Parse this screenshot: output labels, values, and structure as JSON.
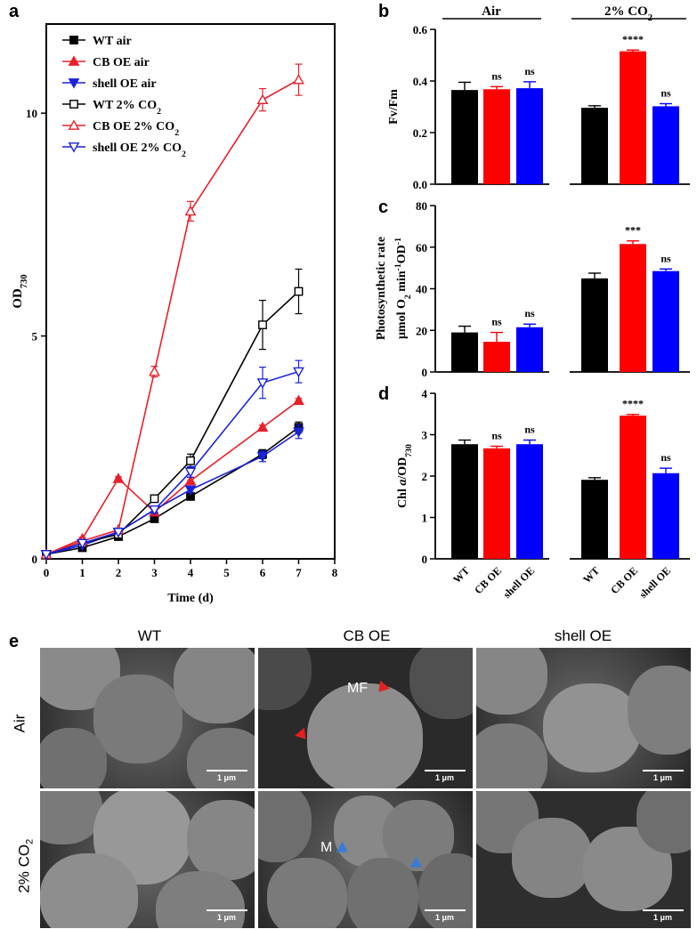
{
  "panels": {
    "a": "a",
    "b": "b",
    "c": "c",
    "d": "d",
    "e": "e"
  },
  "chart_data": [
    {
      "type": "line",
      "panel": "a",
      "xlabel": "Time (d)",
      "ylabel": "OD730",
      "ylabel_main": "OD",
      "ylabel_sub": "730",
      "xlim": [
        0,
        8
      ],
      "ylim": [
        0,
        12
      ],
      "xticks": [
        "0",
        "1",
        "2",
        "3",
        "4",
        "5",
        "6",
        "7",
        "8"
      ],
      "yticks": [
        {
          "value": 0,
          "label": "0"
        },
        {
          "value": 5,
          "label": "5"
        },
        {
          "value": 10,
          "label": "10"
        }
      ],
      "legend_position": "top-left",
      "series": [
        {
          "name": "WT air",
          "color": "#000000",
          "marker": "square-filled",
          "x": [
            0,
            1,
            2,
            3,
            4,
            6,
            7
          ],
          "y": [
            0.1,
            0.25,
            0.5,
            0.9,
            1.4,
            2.35,
            2.95
          ],
          "err": [
            0,
            0.02,
            0.03,
            0.05,
            0.06,
            0.1,
            0.12
          ]
        },
        {
          "name": "CB OE air",
          "color": "#e8202a",
          "marker": "triangle-up-filled",
          "x": [
            0,
            1,
            2,
            3,
            4,
            6,
            7
          ],
          "y": [
            0.1,
            0.45,
            1.8,
            1.05,
            1.75,
            2.95,
            3.55
          ],
          "err": [
            0,
            0.03,
            0.04,
            0.05,
            0.08,
            0.05,
            0.05
          ]
        },
        {
          "name": "shell OE air",
          "color": "#1a22d8",
          "marker": "triangle-down-filled",
          "x": [
            0,
            1,
            2,
            3,
            4,
            6,
            7
          ],
          "y": [
            0.1,
            0.3,
            0.6,
            1.1,
            1.55,
            2.3,
            2.85
          ],
          "err": [
            0,
            0.02,
            0.03,
            0.05,
            0.06,
            0.12,
            0.15
          ]
        },
        {
          "name": "WT 2% CO2",
          "name_main": "WT 2% CO",
          "name_sub": "2",
          "color": "#000000",
          "marker": "square-open",
          "x": [
            0,
            1,
            2,
            3,
            4,
            6,
            7
          ],
          "y": [
            0.1,
            0.35,
            0.55,
            1.35,
            2.2,
            5.25,
            6.0
          ],
          "err": [
            0,
            0.03,
            0.04,
            0.06,
            0.15,
            0.55,
            0.5
          ]
        },
        {
          "name": "CB OE 2% CO2",
          "name_main": "CB OE 2% CO",
          "name_sub": "2",
          "color": "#e8202a",
          "marker": "triangle-up-open",
          "x": [
            0,
            1,
            2,
            3,
            4,
            6,
            7
          ],
          "y": [
            0.1,
            0.4,
            0.65,
            4.2,
            7.8,
            10.3,
            10.75
          ],
          "err": [
            0,
            0.03,
            0.04,
            0.12,
            0.22,
            0.25,
            0.35
          ]
        },
        {
          "name": "shell OE 2% CO2",
          "name_main": "shell OE 2% CO",
          "name_sub": "2",
          "color": "#1a22d8",
          "marker": "triangle-down-open",
          "x": [
            0,
            1,
            2,
            3,
            4,
            6,
            7
          ],
          "y": [
            0.1,
            0.35,
            0.6,
            1.1,
            1.95,
            3.95,
            4.2
          ],
          "err": [
            0,
            0.03,
            0.04,
            0.08,
            0.12,
            0.35,
            0.25
          ]
        }
      ]
    },
    {
      "type": "bar",
      "panel": "b",
      "ylabel": "Fv/Fm",
      "ylim": [
        0,
        0.6
      ],
      "yticks": [
        "0.0",
        "0.2",
        "0.4",
        "0.6"
      ],
      "groups": [
        "Air",
        "2% CO2"
      ],
      "group_labels": [
        {
          "main": "Air",
          "sub": ""
        },
        {
          "main": "2% CO",
          "sub": "2"
        }
      ],
      "categories": [
        "WT",
        "CB OE",
        "shell OE"
      ],
      "colors": [
        "#000000",
        "#ff0000",
        "#0000ff"
      ],
      "values": [
        [
          0.365,
          0.368,
          0.372
        ],
        [
          0.296,
          0.515,
          0.302
        ]
      ],
      "errors": [
        [
          0.03,
          0.01,
          0.025
        ],
        [
          0.008,
          0.005,
          0.01
        ]
      ],
      "annotations": [
        [
          "",
          "ns",
          "ns"
        ],
        [
          "",
          "****",
          "ns"
        ]
      ]
    },
    {
      "type": "bar",
      "panel": "c",
      "ylabel_line1": "Photosynthetic rate",
      "ylabel_line2_main": "μmol O",
      "ylabel_line2_sub1": "2",
      "ylabel_line2_mid": " min",
      "ylabel_line2_sup": "-1",
      "ylabel_line2_end": "OD",
      "ylabel_line2_sup2": "-1",
      "ylim": [
        0,
        80
      ],
      "yticks": [
        "0",
        "20",
        "40",
        "60",
        "80"
      ],
      "categories": [
        "WT",
        "CB OE",
        "shell OE"
      ],
      "colors": [
        "#000000",
        "#ff0000",
        "#0000ff"
      ],
      "values": [
        [
          19,
          14.5,
          21.5
        ],
        [
          45,
          61.5,
          48.5
        ]
      ],
      "errors": [
        [
          3,
          4.5,
          1.5
        ],
        [
          2.5,
          1.5,
          1
        ]
      ],
      "annotations": [
        [
          "",
          "ns",
          "ns"
        ],
        [
          "",
          "***",
          "ns"
        ]
      ]
    },
    {
      "type": "bar",
      "panel": "d",
      "ylabel_main": "Chl ",
      "ylabel_italic": "a",
      "ylabel_rest": "/OD",
      "ylabel_sub": "730",
      "ylim": [
        0,
        4
      ],
      "yticks": [
        "0",
        "1",
        "2",
        "3",
        "4"
      ],
      "categories": [
        "WT",
        "CB OE",
        "shell OE"
      ],
      "colors": [
        "#000000",
        "#ff0000",
        "#0000ff"
      ],
      "values": [
        [
          2.77,
          2.67,
          2.77
        ],
        [
          1.91,
          3.46,
          2.07
        ]
      ],
      "errors": [
        [
          0.1,
          0.05,
          0.1
        ],
        [
          0.05,
          0.03,
          0.12
        ]
      ],
      "annotations": [
        [
          "",
          "ns",
          "ns"
        ],
        [
          "",
          "****",
          "ns"
        ]
      ]
    }
  ],
  "sem": {
    "columns": [
      "WT",
      "CB OE",
      "shell OE"
    ],
    "rows": [
      {
        "main": "Air",
        "sub": ""
      },
      {
        "main": "2% CO",
        "sub": "2"
      }
    ],
    "scale_label": "1 μm",
    "annotations": {
      "mf": "MF",
      "m": "M"
    }
  }
}
